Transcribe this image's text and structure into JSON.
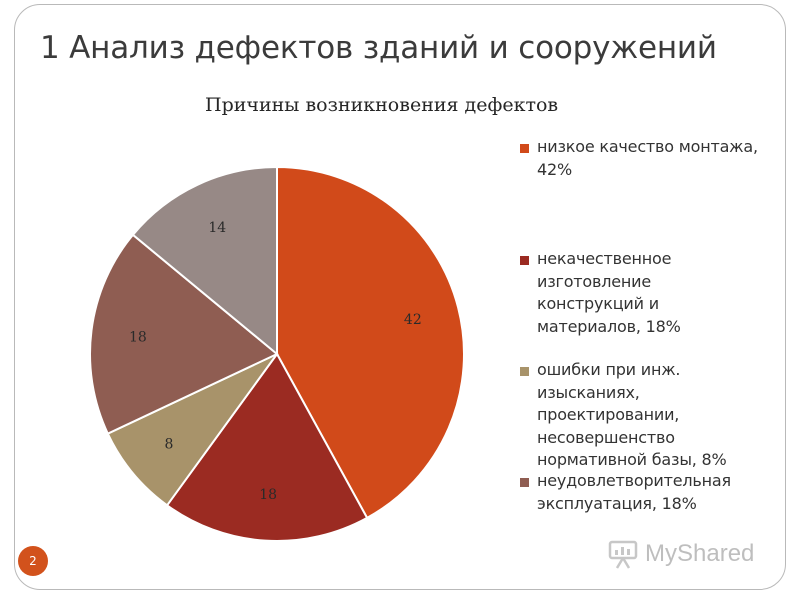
{
  "slide": {
    "title": "1 Анализ дефектов зданий и сооружений",
    "number": "2"
  },
  "watermark": {
    "text": "MyShared"
  },
  "chart_data": {
    "type": "pie",
    "title": "Причины возникновения дефектов",
    "legend_position": "right",
    "start_angle": "top, clockwise",
    "slices": [
      {
        "label": "низкое качество монтажа, 42%",
        "value": 42,
        "color": "#d14a1a"
      },
      {
        "label": "некачественное изготовление конструкций и материалов, 18%",
        "value": 18,
        "color": "#9b2b22"
      },
      {
        "label": "ошибки при инж. изысканиях, проектировании, несовершенство нормативной базы, 8%",
        "value": 8,
        "color": "#a8936a"
      },
      {
        "label": "неудовлетворительная эксплуатация, 18%",
        "value": 18,
        "color": "#8f5d52"
      },
      {
        "label": "",
        "value": 14,
        "color": "#978986"
      }
    ]
  }
}
